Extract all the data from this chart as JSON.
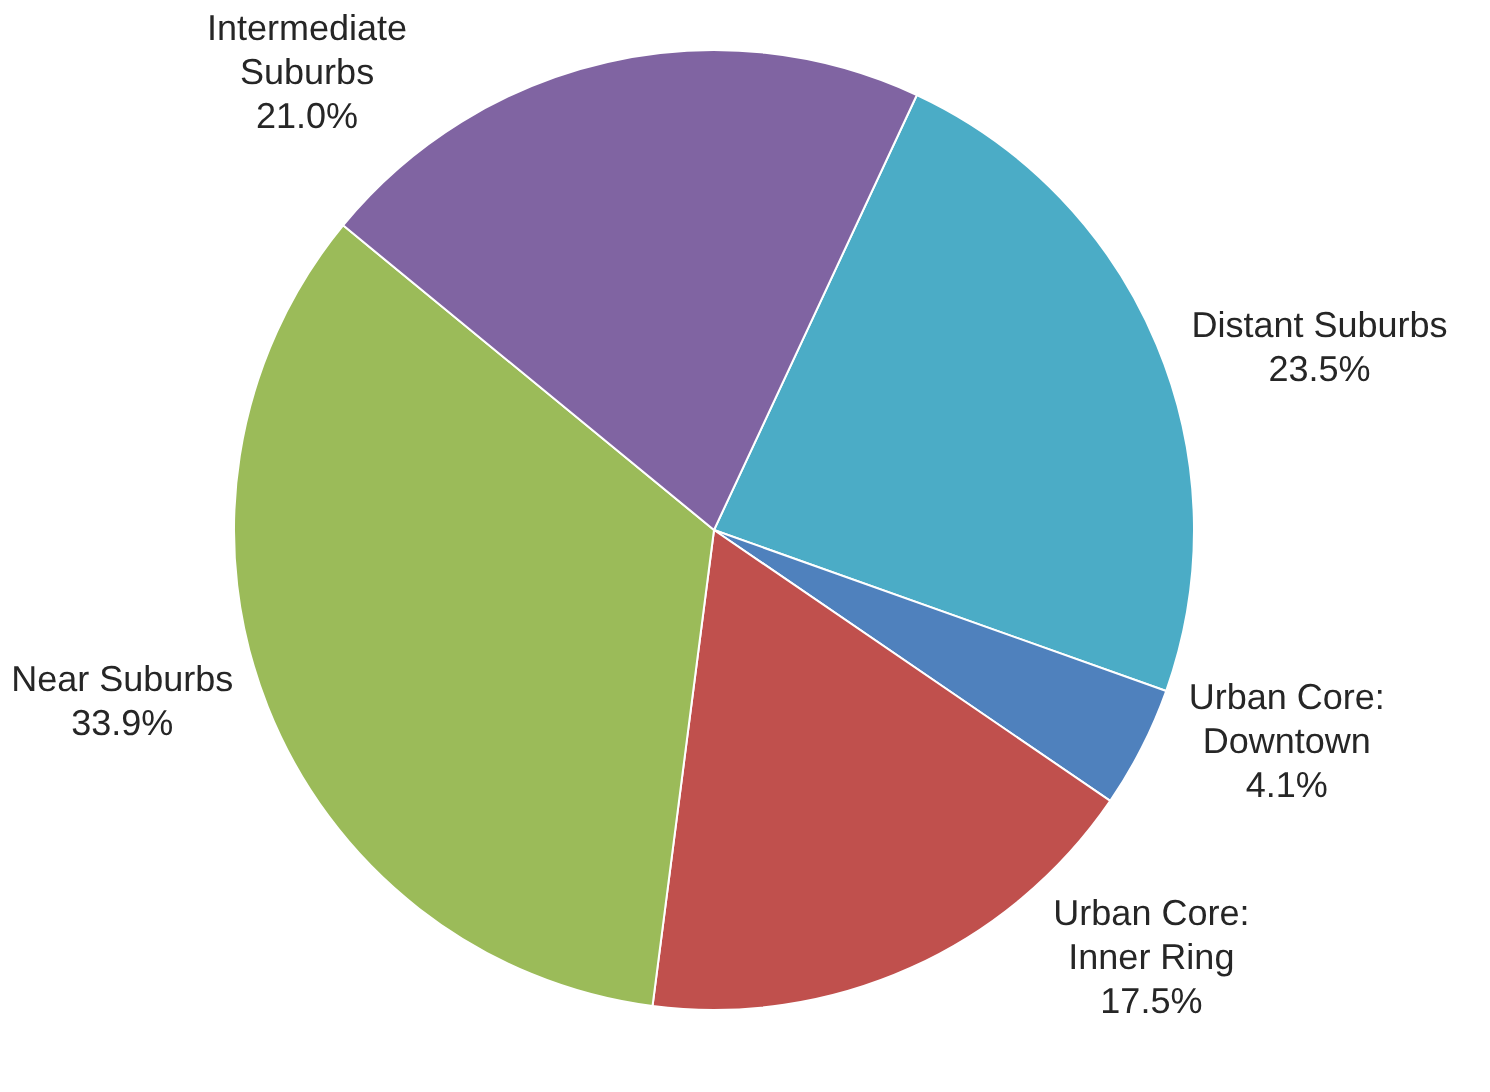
{
  "chart_data": {
    "type": "pie",
    "categories": [
      "Distant Suburbs",
      "Urban Core: Downtown",
      "Urban Core: Inner Ring",
      "Near Suburbs",
      "Intermediate Suburbs"
    ],
    "values": [
      23.5,
      4.1,
      17.5,
      33.9,
      21.0
    ],
    "colors": [
      "#4bacc6",
      "#4f81bd",
      "#c0504d",
      "#9bbb59",
      "#8064a2"
    ],
    "value_labels": [
      "23.5%",
      "4.1%",
      "17.5%",
      "33.9%",
      "21.0%"
    ]
  }
}
